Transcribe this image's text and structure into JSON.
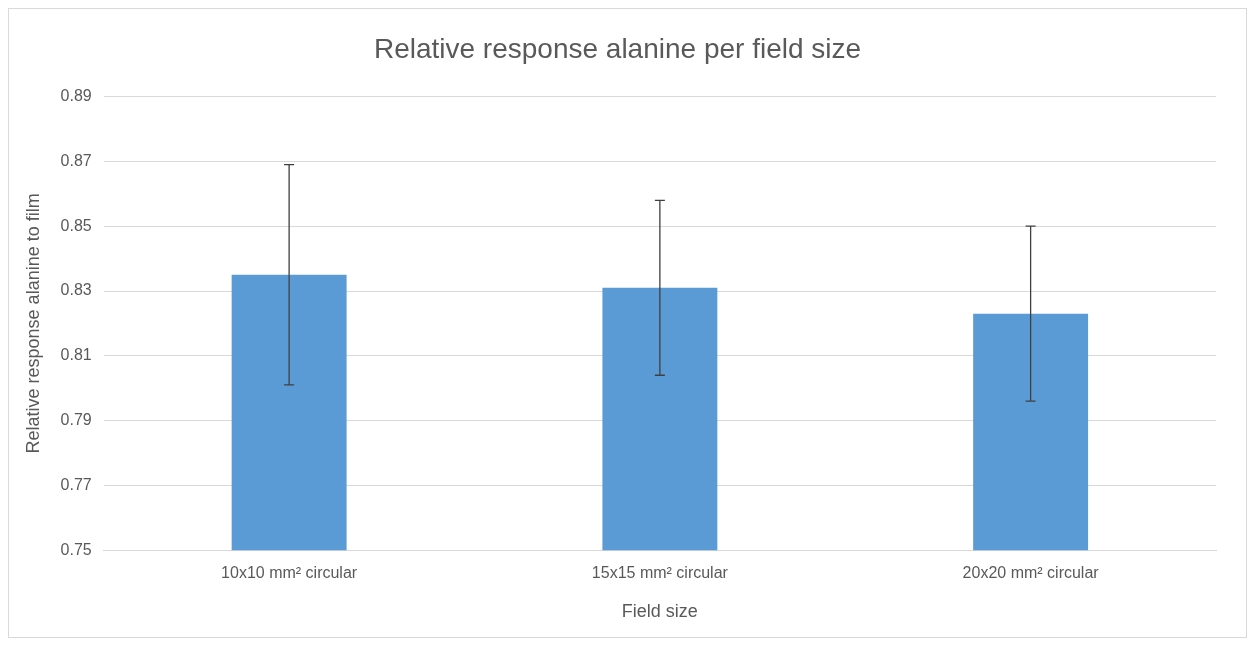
{
  "chart_data": {
    "type": "bar",
    "title": "Relative response alanine per field size",
    "xlabel": "Field size",
    "ylabel": "Relative response alanine to film",
    "categories": [
      "10x10 mm² circular",
      "15x15 mm² circular",
      "20x20 mm² circular"
    ],
    "values": [
      0.835,
      0.831,
      0.823
    ],
    "errors": [
      0.034,
      0.027,
      0.027
    ],
    "color": "#5b9bd5",
    "ylim": [
      0.75,
      0.89
    ],
    "yticks": [
      0.75,
      0.77,
      0.79,
      0.81,
      0.83,
      0.85,
      0.87,
      0.89
    ],
    "grid": "y",
    "legend": false
  }
}
